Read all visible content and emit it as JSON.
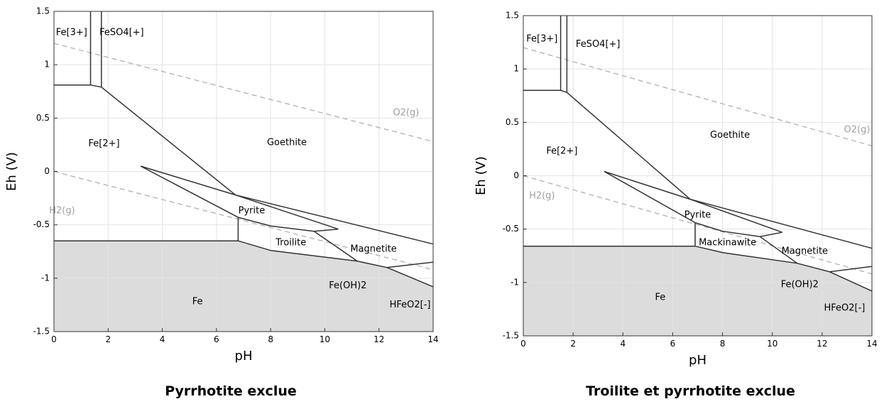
{
  "chart_data": [
    {
      "type": "line",
      "caption": "Pyrrhotite exclue",
      "xlabel": "pH",
      "ylabel": "Eh (V)",
      "xlim": [
        0,
        14
      ],
      "ylim": [
        -1.5,
        1.5
      ],
      "x_ticks": [
        0,
        2,
        4,
        6,
        8,
        10,
        12,
        14
      ],
      "y_ticks": [
        -1.5,
        -1,
        -0.5,
        0,
        0.5,
        1,
        1.5
      ],
      "grid": true,
      "water_lines": [
        {
          "label": "O2(g)",
          "points": [
            [
              0,
              1.2
            ],
            [
              14,
              0.28
            ]
          ],
          "label_at": [
            13.0,
            0.55
          ]
        },
        {
          "label": "H2(g)",
          "points": [
            [
              0,
              0
            ],
            [
              14,
              -0.92
            ]
          ],
          "label_at": [
            0.3,
            -0.37
          ]
        }
      ],
      "stability_region": {
        "label": "Fe",
        "label_at": [
          5.3,
          -1.22
        ],
        "boundary": [
          [
            0,
            -0.65
          ],
          [
            6.8,
            -0.65
          ],
          [
            8,
            -0.74
          ],
          [
            11.2,
            -0.84
          ],
          [
            12.3,
            -0.9
          ],
          [
            14,
            -1.08
          ]
        ]
      },
      "boundaries": [
        [
          [
            0,
            0.81
          ],
          [
            1.35,
            0.81
          ],
          [
            1.75,
            0.79
          ],
          [
            6.7,
            -0.22
          ],
          [
            14,
            -0.68
          ]
        ],
        [
          [
            1.35,
            1.5
          ],
          [
            1.35,
            0.81
          ]
        ],
        [
          [
            1.75,
            1.5
          ],
          [
            1.75,
            0.79
          ]
        ],
        [
          [
            3.2,
            0.05
          ],
          [
            6.7,
            -0.22
          ],
          [
            10.5,
            -0.54
          ]
        ],
        [
          [
            3.2,
            0.05
          ],
          [
            6.8,
            -0.43
          ]
        ],
        [
          [
            6.8,
            -0.43
          ],
          [
            8,
            -0.51
          ],
          [
            9.6,
            -0.56
          ],
          [
            10.5,
            -0.54
          ]
        ],
        [
          [
            6.8,
            -0.43
          ],
          [
            6.8,
            -0.65
          ]
        ],
        [
          [
            9.6,
            -0.56
          ],
          [
            11.2,
            -0.84
          ]
        ],
        [
          [
            12.3,
            -0.9
          ],
          [
            14,
            -0.85
          ]
        ]
      ],
      "region_labels": [
        {
          "text": "Fe[3+]",
          "at": [
            0.65,
            1.3
          ]
        },
        {
          "text": "FeSO4[+]",
          "at": [
            2.5,
            1.3
          ]
        },
        {
          "text": "Fe[2+]",
          "at": [
            1.85,
            0.26
          ]
        },
        {
          "text": "Goethite",
          "at": [
            8.6,
            0.27
          ]
        },
        {
          "text": "Pyrite",
          "at": [
            7.3,
            -0.37
          ]
        },
        {
          "text": "Troilite",
          "at": [
            8.75,
            -0.67
          ]
        },
        {
          "text": "Magnetite",
          "at": [
            11.8,
            -0.73
          ]
        },
        {
          "text": "Fe(OH)2",
          "at": [
            10.85,
            -1.07
          ]
        },
        {
          "text": "HFeO2[-]",
          "at": [
            13.15,
            -1.25
          ]
        }
      ]
    },
    {
      "type": "line",
      "caption": "Troilite et pyrrhotite exclue",
      "xlabel": "pH",
      "ylabel": "Eh (V)",
      "xlim": [
        0,
        14
      ],
      "ylim": [
        -1.5,
        1.5
      ],
      "x_ticks": [
        0,
        2,
        4,
        6,
        8,
        10,
        12,
        14
      ],
      "y_ticks": [
        -1.5,
        -1,
        -0.5,
        0,
        0.5,
        1,
        1.5
      ],
      "grid": true,
      "water_lines": [
        {
          "label": "O2(g)",
          "points": [
            [
              0,
              1.2
            ],
            [
              14,
              0.28
            ]
          ],
          "label_at": [
            13.4,
            0.43
          ]
        },
        {
          "label": "H2(g)",
          "points": [
            [
              0,
              0
            ],
            [
              14,
              -0.92
            ]
          ],
          "label_at": [
            0.75,
            -0.19
          ]
        }
      ],
      "stability_region": {
        "label": "Fe",
        "label_at": [
          5.5,
          -1.14
        ],
        "boundary": [
          [
            0,
            -0.66
          ],
          [
            6.9,
            -0.66
          ],
          [
            8,
            -0.72
          ],
          [
            11,
            -0.82
          ],
          [
            12.3,
            -0.9
          ],
          [
            14,
            -1.08
          ]
        ]
      },
      "boundaries": [
        [
          [
            0,
            0.8
          ],
          [
            1.5,
            0.8
          ],
          [
            1.75,
            0.78
          ],
          [
            6.7,
            -0.22
          ],
          [
            14,
            -0.68
          ]
        ],
        [
          [
            1.5,
            1.5
          ],
          [
            1.5,
            0.8
          ]
        ],
        [
          [
            1.75,
            1.5
          ],
          [
            1.75,
            0.78
          ]
        ],
        [
          [
            3.25,
            0.04
          ],
          [
            6.7,
            -0.22
          ],
          [
            10.4,
            -0.53
          ]
        ],
        [
          [
            3.25,
            0.04
          ],
          [
            6.9,
            -0.44
          ]
        ],
        [
          [
            6.9,
            -0.44
          ],
          [
            8,
            -0.52
          ],
          [
            9.5,
            -0.57
          ],
          [
            10.4,
            -0.53
          ]
        ],
        [
          [
            6.9,
            -0.44
          ],
          [
            6.9,
            -0.66
          ]
        ],
        [
          [
            9.5,
            -0.57
          ],
          [
            11,
            -0.82
          ]
        ],
        [
          [
            12.3,
            -0.9
          ],
          [
            14,
            -0.85
          ]
        ]
      ],
      "region_labels": [
        {
          "text": "Fe[3+]",
          "at": [
            0.75,
            1.28
          ]
        },
        {
          "text": "FeSO4[+]",
          "at": [
            3.0,
            1.23
          ]
        },
        {
          "text": "Fe[2+]",
          "at": [
            1.55,
            0.23
          ]
        },
        {
          "text": "Goethite",
          "at": [
            8.3,
            0.38
          ]
        },
        {
          "text": "Pyrite",
          "at": [
            7.0,
            -0.37
          ]
        },
        {
          "text": "Mackinawite",
          "at": [
            8.2,
            -0.63
          ]
        },
        {
          "text": "Magnetite",
          "at": [
            11.3,
            -0.71
          ]
        },
        {
          "text": "Fe(OH)2",
          "at": [
            11.1,
            -1.02
          ]
        },
        {
          "text": "HFeO2[-]",
          "at": [
            12.9,
            -1.24
          ]
        }
      ]
    }
  ]
}
